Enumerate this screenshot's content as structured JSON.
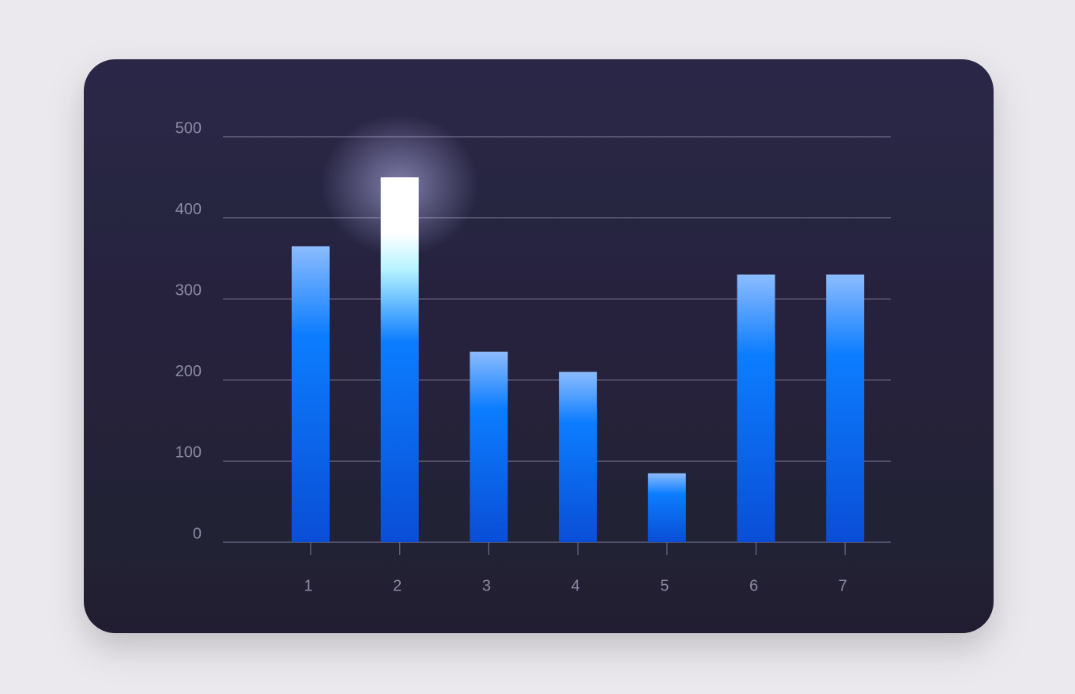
{
  "chart_data": {
    "type": "bar",
    "categories": [
      "1",
      "2",
      "3",
      "4",
      "5",
      "6",
      "7"
    ],
    "values": [
      365,
      450,
      235,
      210,
      85,
      330,
      330
    ],
    "color": "#0a7aff",
    "highlight": "2",
    "ylim": [
      0,
      500
    ],
    "yticks": [
      0,
      100,
      200,
      300,
      400,
      500
    ],
    "grid": true
  }
}
